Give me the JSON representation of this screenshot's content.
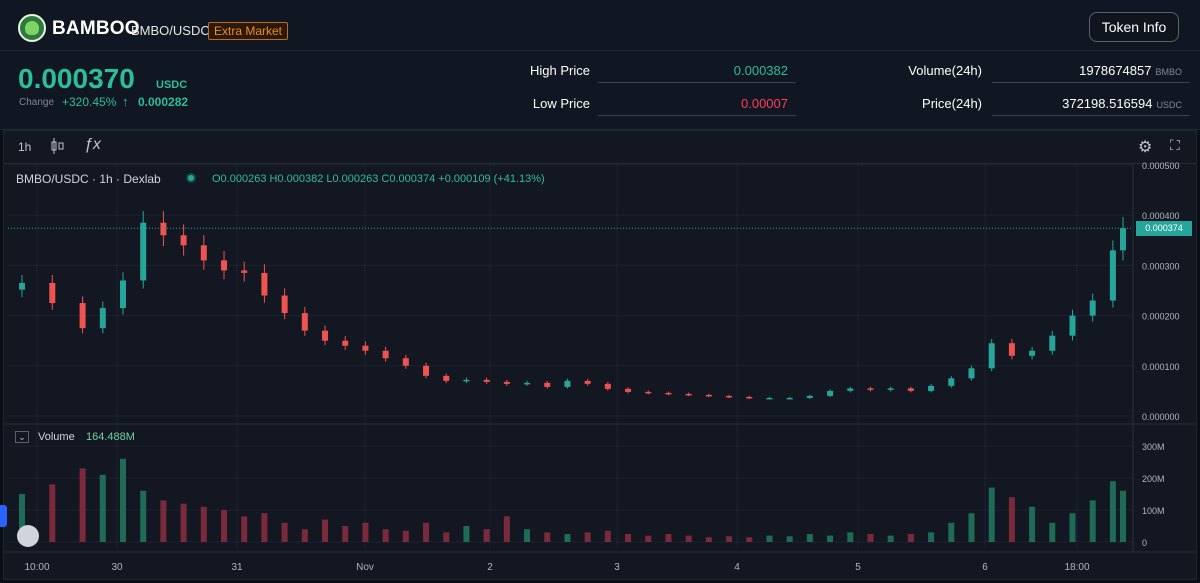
{
  "header": {
    "brand": "BAMBOO",
    "pair": "BMBO/USDC",
    "badge": "Extra Market",
    "token_info_label": "Token Info",
    "price": "0.000370",
    "price_unit": "USDC",
    "change_label": "Change",
    "change_pct": "+320.45%",
    "change_arrow": "↑",
    "change_value": "0.000282",
    "high_label": "High Price",
    "high_value": "0.000382",
    "low_label": "Low Price",
    "low_value": "0.00007",
    "volume_label": "Volume(24h)",
    "volume_value": "1978674857",
    "volume_unit": "BMBO",
    "price24_label": "Price(24h)",
    "price24_value": "372198.516594",
    "price24_unit": "USDC"
  },
  "toolbar": {
    "interval": "1h",
    "candle_icon": "candlestick-icon",
    "indicator_icon": "fx-icon",
    "settings_icon": "gear-icon",
    "fullscreen_icon": "fullscreen-icon"
  },
  "legend": {
    "title": "BMBO/USDC · 1h · Dexlab",
    "ohlc": "O0.000263  H0.000382  L0.000263  C0.000374  +0.000109 (+41.13%)",
    "volume_label": "Volume",
    "volume_value": "164.488M",
    "last_price_tag": "0.000374"
  },
  "colors": {
    "up": "#26a69a",
    "down": "#ef5350",
    "accent": "#2dbd9a"
  },
  "chart_data": {
    "type": "candlestick",
    "x_ticks": [
      "10:00",
      "30",
      "31",
      "Nov",
      "2",
      "3",
      "4",
      "5",
      "6",
      "18:00"
    ],
    "y_ticks": [
      "0.000500",
      "0.000400",
      "0.000300",
      "0.000200",
      "0.000100",
      "0.000000"
    ],
    "volume_ticks": [
      "300M",
      "200M",
      "100M",
      "0"
    ],
    "ylim": [
      0,
      0.0005
    ],
    "volume_ylim": [
      0,
      300000000
    ],
    "last_price": 0.000374,
    "price_series": [
      [
        0,
        0.000265
      ],
      [
        3,
        0.000225
      ],
      [
        6,
        0.000175
      ],
      [
        8,
        0.000215
      ],
      [
        10,
        0.00027
      ],
      [
        12,
        0.000385
      ],
      [
        14,
        0.00036
      ],
      [
        16,
        0.00034
      ],
      [
        18,
        0.00031
      ],
      [
        20,
        0.00029
      ],
      [
        22,
        0.000285
      ],
      [
        24,
        0.00024
      ],
      [
        26,
        0.000205
      ],
      [
        28,
        0.00017
      ],
      [
        30,
        0.00015
      ],
      [
        32,
        0.00014
      ],
      [
        34,
        0.00013
      ],
      [
        36,
        0.000115
      ],
      [
        38,
        0.0001
      ],
      [
        40,
        8e-05
      ],
      [
        42,
        7e-05
      ],
      [
        44,
        7.2e-05
      ],
      [
        46,
        6.8e-05
      ],
      [
        48,
        6.4e-05
      ],
      [
        50,
        6.6e-05
      ],
      [
        52,
        5.8e-05
      ],
      [
        54,
        7e-05
      ],
      [
        56,
        6.4e-05
      ],
      [
        58,
        5.4e-05
      ],
      [
        60,
        4.8e-05
      ],
      [
        62,
        4.6e-05
      ],
      [
        64,
        4.4e-05
      ],
      [
        66,
        4.2e-05
      ],
      [
        68,
        4e-05
      ],
      [
        70,
        3.8e-05
      ],
      [
        72,
        3.6e-05
      ],
      [
        74,
        3.6e-05
      ],
      [
        76,
        3.6e-05
      ],
      [
        78,
        4e-05
      ],
      [
        80,
        5e-05
      ],
      [
        82,
        5.5e-05
      ],
      [
        84,
        5.2e-05
      ],
      [
        86,
        5.5e-05
      ],
      [
        88,
        5e-05
      ],
      [
        90,
        6e-05
      ],
      [
        92,
        7.5e-05
      ],
      [
        94,
        9.5e-05
      ],
      [
        96,
        0.000145
      ],
      [
        98,
        0.00012
      ],
      [
        100,
        0.00013
      ],
      [
        102,
        0.00016
      ],
      [
        104,
        0.0002
      ],
      [
        106,
        0.00023
      ],
      [
        108,
        0.00033
      ],
      [
        109,
        0.000374
      ]
    ],
    "volume_series": [
      [
        0,
        150000000
      ],
      [
        3,
        180000000
      ],
      [
        6,
        230000000
      ],
      [
        8,
        210000000
      ],
      [
        10,
        260000000
      ],
      [
        12,
        160000000
      ],
      [
        14,
        130000000
      ],
      [
        16,
        120000000
      ],
      [
        18,
        110000000
      ],
      [
        20,
        100000000
      ],
      [
        22,
        80000000
      ],
      [
        24,
        90000000
      ],
      [
        26,
        60000000
      ],
      [
        28,
        40000000
      ],
      [
        30,
        70000000
      ],
      [
        32,
        50000000
      ],
      [
        34,
        60000000
      ],
      [
        36,
        40000000
      ],
      [
        38,
        35000000
      ],
      [
        40,
        60000000
      ],
      [
        42,
        30000000
      ],
      [
        44,
        50000000
      ],
      [
        46,
        40000000
      ],
      [
        48,
        80000000
      ],
      [
        50,
        40000000
      ],
      [
        52,
        30000000
      ],
      [
        54,
        25000000
      ],
      [
        56,
        30000000
      ],
      [
        58,
        35000000
      ],
      [
        60,
        25000000
      ],
      [
        62,
        20000000
      ],
      [
        64,
        25000000
      ],
      [
        66,
        20000000
      ],
      [
        68,
        15000000
      ],
      [
        70,
        18000000
      ],
      [
        72,
        15000000
      ],
      [
        74,
        20000000
      ],
      [
        76,
        18000000
      ],
      [
        78,
        25000000
      ],
      [
        80,
        20000000
      ],
      [
        82,
        30000000
      ],
      [
        84,
        25000000
      ],
      [
        86,
        20000000
      ],
      [
        88,
        25000000
      ],
      [
        90,
        30000000
      ],
      [
        92,
        60000000
      ],
      [
        94,
        90000000
      ],
      [
        96,
        170000000
      ],
      [
        98,
        140000000
      ],
      [
        100,
        110000000
      ],
      [
        102,
        60000000
      ],
      [
        104,
        90000000
      ],
      [
        106,
        130000000
      ],
      [
        108,
        190000000
      ],
      [
        109,
        160000000
      ]
    ]
  }
}
